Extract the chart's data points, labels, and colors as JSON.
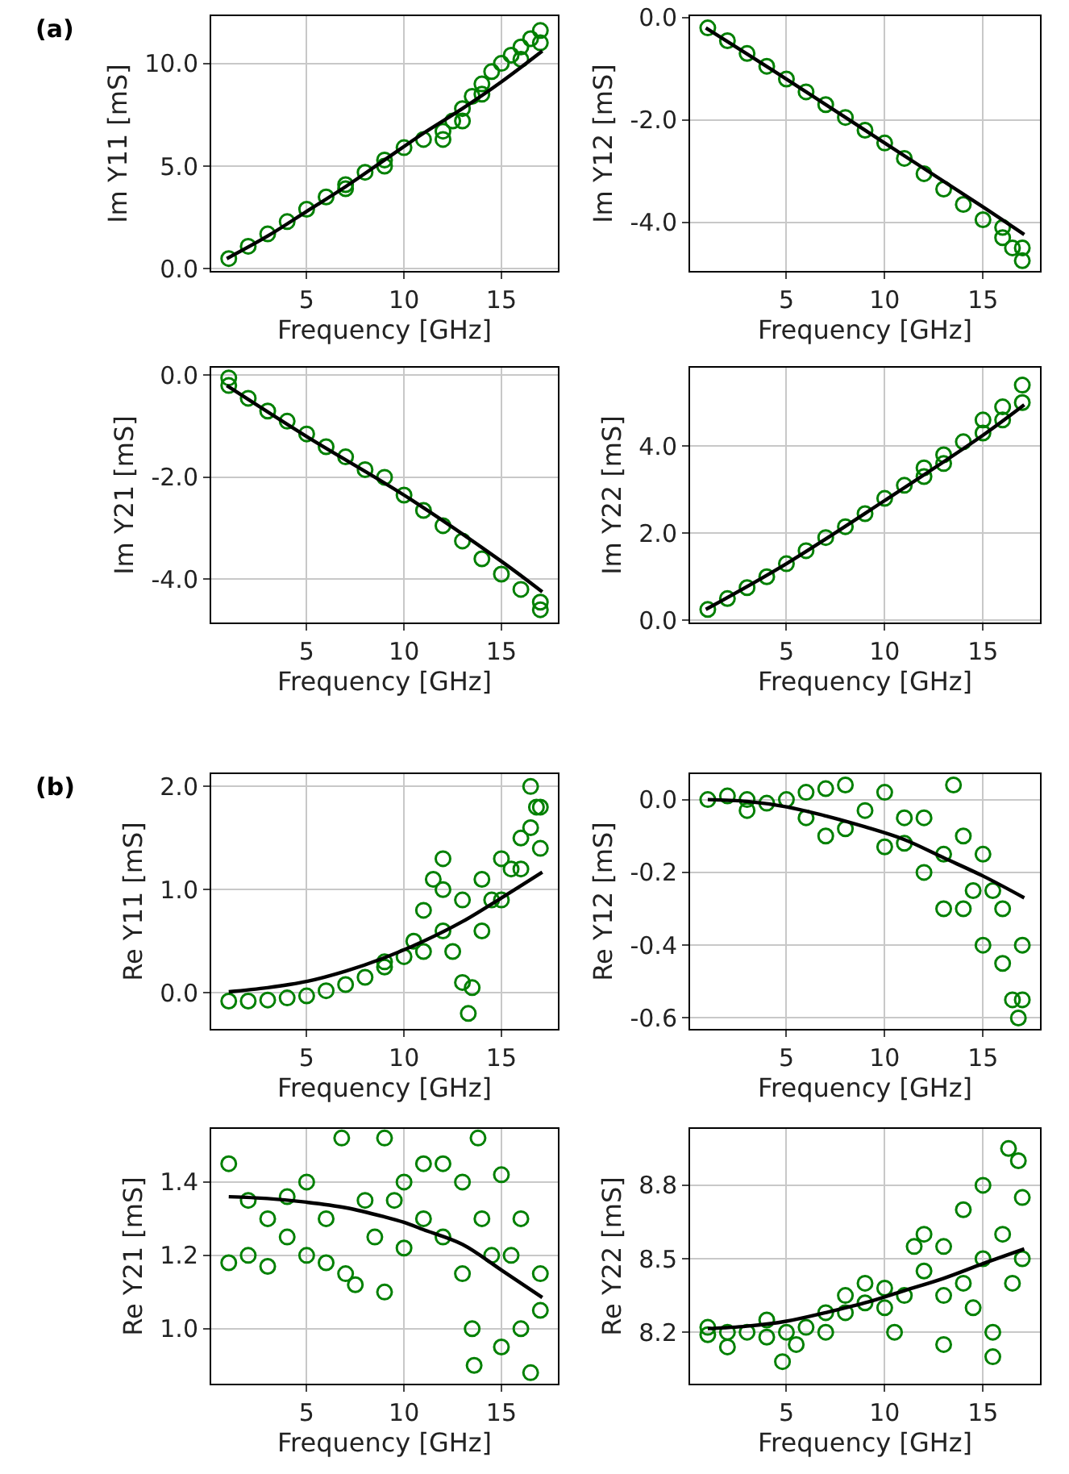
{
  "chart_data": [
    {
      "type": "scatter",
      "annotations": [
        "(a)"
      ],
      "xlabel": "Frequency [GHz]",
      "ylabel": "Im Y11 [mS]",
      "xlim": [
        0.1,
        17.9
      ],
      "xticks": [
        5,
        10,
        15
      ],
      "ylim": [
        -0.1,
        12.3
      ],
      "yticks": [
        {
          "value": 0,
          "label": "0.0"
        },
        {
          "value": 5,
          "label": "5.0"
        },
        {
          "value": 10,
          "label": "10.0"
        }
      ],
      "grid": true,
      "marker": "circle",
      "series": [
        {
          "type": "scatter",
          "color": "#008000",
          "x": [
            1,
            2,
            3,
            4,
            5,
            6,
            7,
            7,
            8,
            9,
            9,
            10,
            11,
            12,
            12,
            12.5,
            13,
            13,
            13.5,
            14,
            14,
            14.5,
            15,
            15.5,
            16,
            16,
            16.5,
            17,
            17
          ],
          "values": [
            0.5,
            1.1,
            1.7,
            2.3,
            2.9,
            3.5,
            4.1,
            3.9,
            4.7,
            5.3,
            5.0,
            5.9,
            6.3,
            6.7,
            6.3,
            7.2,
            7.8,
            7.2,
            8.4,
            9.0,
            8.5,
            9.6,
            10.0,
            10.4,
            10.8,
            10.2,
            11.2,
            11.6,
            11.0
          ]
        },
        {
          "type": "line",
          "color": "#000000",
          "marker": "none",
          "x": [
            0.9,
            3,
            5,
            7,
            9,
            11,
            13,
            15,
            17.1
          ],
          "values": [
            0.5,
            1.6,
            2.8,
            4.0,
            5.3,
            6.6,
            7.8,
            9.1,
            10.6
          ]
        }
      ]
    },
    {
      "type": "scatter",
      "xlabel": "Frequency [GHz]",
      "ylabel": "Im Y12 [mS]",
      "xlim": [
        0.1,
        17.9
      ],
      "xticks": [
        5,
        10,
        15
      ],
      "ylim": [
        -4.95,
        0.03
      ],
      "yticks": [
        {
          "value": -4,
          "label": "-4.0"
        },
        {
          "value": -2,
          "label": "-2.0"
        },
        {
          "value": 0,
          "label": "0.0"
        }
      ],
      "grid": true,
      "marker": "circle",
      "series": [
        {
          "type": "scatter",
          "color": "#008000",
          "x": [
            1,
            2,
            3,
            4,
            5,
            6,
            7,
            8,
            9,
            10,
            11,
            12,
            13,
            14,
            15,
            16,
            16,
            16.5,
            17,
            17
          ],
          "values": [
            -0.2,
            -0.45,
            -0.7,
            -0.95,
            -1.2,
            -1.45,
            -1.7,
            -1.95,
            -2.2,
            -2.45,
            -2.75,
            -3.05,
            -3.35,
            -3.65,
            -3.95,
            -4.3,
            -4.1,
            -4.5,
            -4.75,
            -4.5
          ]
        },
        {
          "type": "line",
          "color": "#000000",
          "marker": "none",
          "x": [
            0.9,
            5,
            10,
            15,
            17.1
          ],
          "values": [
            -0.2,
            -1.2,
            -2.45,
            -3.7,
            -4.24
          ]
        }
      ]
    },
    {
      "type": "scatter",
      "xlabel": "Frequency [GHz]",
      "ylabel": "Im Y21 [mS]",
      "xlim": [
        0.1,
        17.9
      ],
      "xticks": [
        5,
        10,
        15
      ],
      "ylim": [
        -4.85,
        0.15
      ],
      "yticks": [
        {
          "value": -4,
          "label": "-4.0"
        },
        {
          "value": -2,
          "label": "-2.0"
        },
        {
          "value": 0,
          "label": "0.0"
        }
      ],
      "grid": true,
      "marker": "circle",
      "series": [
        {
          "type": "scatter",
          "color": "#008000",
          "x": [
            1,
            1,
            2,
            3,
            4,
            5,
            6,
            7,
            8,
            9,
            10,
            11,
            12,
            13,
            14,
            15,
            16,
            17,
            17
          ],
          "values": [
            -0.2,
            -0.05,
            -0.45,
            -0.7,
            -0.9,
            -1.15,
            -1.4,
            -1.6,
            -1.85,
            -2.0,
            -2.35,
            -2.65,
            -2.95,
            -3.25,
            -3.6,
            -3.9,
            -4.2,
            -4.45,
            -4.6
          ]
        },
        {
          "type": "line",
          "color": "#000000",
          "marker": "none",
          "x": [
            0.9,
            5,
            10,
            15,
            17.1
          ],
          "values": [
            -0.2,
            -1.2,
            -2.35,
            -3.65,
            -4.25
          ]
        }
      ]
    },
    {
      "type": "scatter",
      "xlabel": "Frequency [GHz]",
      "ylabel": "Im Y22 [mS]",
      "xlim": [
        0.1,
        17.9
      ],
      "xticks": [
        5,
        10,
        15
      ],
      "ylim": [
        -0.05,
        5.8
      ],
      "yticks": [
        {
          "value": 0,
          "label": "0.0"
        },
        {
          "value": 2,
          "label": "2.0"
        },
        {
          "value": 4,
          "label": "4.0"
        }
      ],
      "grid": true,
      "marker": "circle",
      "series": [
        {
          "type": "scatter",
          "color": "#008000",
          "x": [
            1,
            2,
            3,
            4,
            5,
            6,
            7,
            8,
            9,
            10,
            11,
            12,
            12,
            13,
            13,
            14,
            15,
            15,
            16,
            16,
            17,
            17
          ],
          "values": [
            0.25,
            0.5,
            0.75,
            1.0,
            1.3,
            1.6,
            1.9,
            2.15,
            2.45,
            2.8,
            3.1,
            3.5,
            3.3,
            3.8,
            3.6,
            4.1,
            4.6,
            4.3,
            4.9,
            4.6,
            5.4,
            5.0
          ]
        },
        {
          "type": "line",
          "color": "#000000",
          "marker": "none",
          "x": [
            0.9,
            5,
            10,
            15,
            17.1
          ],
          "values": [
            0.25,
            1.3,
            2.75,
            4.25,
            4.95
          ]
        }
      ]
    },
    {
      "type": "scatter",
      "annotations": [
        "(b)"
      ],
      "xlabel": "Frequency [GHz]",
      "ylabel": "Re Y11 [mS]",
      "xlim": [
        0.1,
        17.9
      ],
      "xticks": [
        5,
        10,
        15
      ],
      "ylim": [
        -0.35,
        2.12
      ],
      "yticks": [
        {
          "value": 0,
          "label": "0.0"
        },
        {
          "value": 1,
          "label": "1.0"
        },
        {
          "value": 2,
          "label": "2.0"
        }
      ],
      "grid": true,
      "marker": "circle",
      "series": [
        {
          "type": "scatter",
          "color": "#008000",
          "x": [
            1,
            2,
            3,
            4,
            5,
            6,
            7,
            8,
            9,
            9,
            10,
            10.5,
            11,
            11,
            11.5,
            12,
            12,
            12,
            12.5,
            13,
            13,
            13.3,
            13.5,
            14,
            14,
            14.5,
            15,
            15,
            15.5,
            16,
            16,
            16.5,
            16.5,
            16.8,
            17,
            17
          ],
          "values": [
            -0.08,
            -0.08,
            -0.07,
            -0.05,
            -0.03,
            0.02,
            0.08,
            0.15,
            0.25,
            0.3,
            0.35,
            0.5,
            0.8,
            0.4,
            1.1,
            1.3,
            0.6,
            1.0,
            0.4,
            0.1,
            0.9,
            -0.2,
            0.05,
            0.6,
            1.1,
            0.9,
            1.3,
            0.9,
            1.2,
            1.5,
            1.2,
            2.0,
            1.6,
            1.8,
            1.4,
            1.8
          ]
        },
        {
          "type": "line",
          "color": "#000000",
          "marker": "none",
          "x": [
            1,
            3,
            5,
            7,
            9,
            11,
            13,
            15,
            17.1
          ],
          "values": [
            0.01,
            0.05,
            0.11,
            0.21,
            0.34,
            0.5,
            0.69,
            0.92,
            1.17
          ]
        }
      ]
    },
    {
      "type": "scatter",
      "xlabel": "Frequency [GHz]",
      "ylabel": "Re Y12 [mS]",
      "xlim": [
        0.1,
        17.9
      ],
      "xticks": [
        5,
        10,
        15
      ],
      "ylim": [
        -0.63,
        0.07
      ],
      "yticks": [
        {
          "value": -0.6,
          "label": "-0.6"
        },
        {
          "value": -0.4,
          "label": "-0.4"
        },
        {
          "value": -0.2,
          "label": "-0.2"
        },
        {
          "value": 0,
          "label": "0.0"
        }
      ],
      "grid": true,
      "marker": "circle",
      "series": [
        {
          "type": "scatter",
          "color": "#008000",
          "x": [
            1,
            2,
            3,
            3,
            4,
            5,
            6,
            6,
            7,
            7,
            8,
            8,
            9,
            10,
            10,
            11,
            11,
            12,
            12,
            13,
            13,
            13.5,
            14,
            14,
            14.5,
            15,
            15,
            15.5,
            16,
            16,
            16.5,
            16.8,
            17,
            17
          ],
          "values": [
            0.0,
            0.01,
            0.0,
            -0.03,
            -0.01,
            0.0,
            -0.05,
            0.02,
            0.03,
            -0.1,
            0.04,
            -0.08,
            -0.03,
            0.02,
            -0.13,
            -0.05,
            -0.12,
            -0.05,
            -0.2,
            -0.15,
            -0.3,
            0.04,
            -0.1,
            -0.3,
            -0.25,
            -0.15,
            -0.4,
            -0.25,
            -0.45,
            -0.3,
            -0.55,
            -0.6,
            -0.4,
            -0.55
          ]
        },
        {
          "type": "line",
          "color": "#000000",
          "marker": "none",
          "x": [
            1,
            3,
            5,
            7,
            9,
            11,
            13,
            15,
            17.1
          ],
          "values": [
            0.0,
            -0.005,
            -0.02,
            -0.045,
            -0.075,
            -0.11,
            -0.16,
            -0.21,
            -0.27
          ]
        }
      ]
    },
    {
      "type": "scatter",
      "xlabel": "Frequency [GHz]",
      "ylabel": "Re Y21 [mS]",
      "xlim": [
        0.1,
        17.9
      ],
      "xticks": [
        5,
        10,
        15
      ],
      "ylim": [
        0.85,
        1.545
      ],
      "yticks": [
        {
          "value": 1,
          "label": "1.0"
        },
        {
          "value": 1.2,
          "label": "1.2"
        },
        {
          "value": 1.4,
          "label": "1.4"
        }
      ],
      "grid": true,
      "marker": "circle",
      "series": [
        {
          "type": "scatter",
          "color": "#008000",
          "x": [
            1,
            1,
            2,
            2,
            3,
            3,
            4,
            4,
            5,
            5,
            6,
            6,
            6.8,
            7,
            7.5,
            8,
            8.5,
            9,
            9,
            9.5,
            10,
            10,
            11,
            11,
            12,
            12,
            13,
            13,
            13.5,
            13.8,
            13.6,
            14,
            14.5,
            15,
            15,
            15.5,
            16,
            16,
            16.5,
            17,
            17
          ],
          "values": [
            1.45,
            1.18,
            1.35,
            1.2,
            1.3,
            1.17,
            1.36,
            1.25,
            1.4,
            1.2,
            1.3,
            1.18,
            1.52,
            1.15,
            1.12,
            1.35,
            1.25,
            1.52,
            1.1,
            1.35,
            1.4,
            1.22,
            1.45,
            1.3,
            1.45,
            1.25,
            1.4,
            1.15,
            1.0,
            1.52,
            0.9,
            1.3,
            1.2,
            1.42,
            0.95,
            1.2,
            1.3,
            1.0,
            0.88,
            1.05,
            1.15
          ]
        },
        {
          "type": "line",
          "color": "#000000",
          "marker": "none",
          "x": [
            1,
            3,
            5,
            7,
            9,
            10,
            11,
            13,
            15,
            17.1
          ],
          "values": [
            1.36,
            1.355,
            1.345,
            1.33,
            1.305,
            1.29,
            1.27,
            1.23,
            1.16,
            1.085
          ]
        }
      ]
    },
    {
      "type": "scatter",
      "xlabel": "Frequency [GHz]",
      "ylabel": "Re Y22 [mS]",
      "xlim": [
        0.1,
        17.9
      ],
      "xticks": [
        5,
        10,
        15
      ],
      "ylim": [
        7.99,
        9.03
      ],
      "yticks": [
        {
          "value": 8.2,
          "label": "8.2"
        },
        {
          "value": 8.5,
          "label": "8.5"
        },
        {
          "value": 8.8,
          "label": "8.8"
        }
      ],
      "grid": true,
      "marker": "circle",
      "series": [
        {
          "type": "scatter",
          "color": "#008000",
          "x": [
            1,
            1,
            2,
            2,
            3,
            4,
            4,
            4.8,
            5,
            5.5,
            6,
            7,
            7,
            8,
            8,
            9,
            9,
            10,
            10,
            10.5,
            11,
            11.5,
            12,
            12,
            13,
            13,
            13,
            14,
            14,
            14.5,
            15,
            15,
            15.5,
            15.5,
            16,
            16.3,
            16.5,
            17,
            17,
            16.8
          ],
          "values": [
            8.22,
            8.19,
            8.2,
            8.14,
            8.2,
            8.25,
            8.18,
            8.08,
            8.2,
            8.15,
            8.22,
            8.28,
            8.2,
            8.35,
            8.28,
            8.4,
            8.32,
            8.38,
            8.3,
            8.2,
            8.35,
            8.55,
            8.6,
            8.45,
            8.55,
            8.35,
            8.15,
            8.7,
            8.4,
            8.3,
            8.8,
            8.5,
            8.2,
            8.1,
            8.6,
            8.95,
            8.4,
            8.75,
            8.5,
            8.9
          ]
        },
        {
          "type": "line",
          "color": "#000000",
          "marker": "none",
          "x": [
            1,
            3,
            5,
            7,
            9,
            11,
            13,
            15,
            17.1
          ],
          "values": [
            8.215,
            8.225,
            8.245,
            8.28,
            8.32,
            8.37,
            8.42,
            8.48,
            8.54
          ]
        }
      ]
    }
  ]
}
